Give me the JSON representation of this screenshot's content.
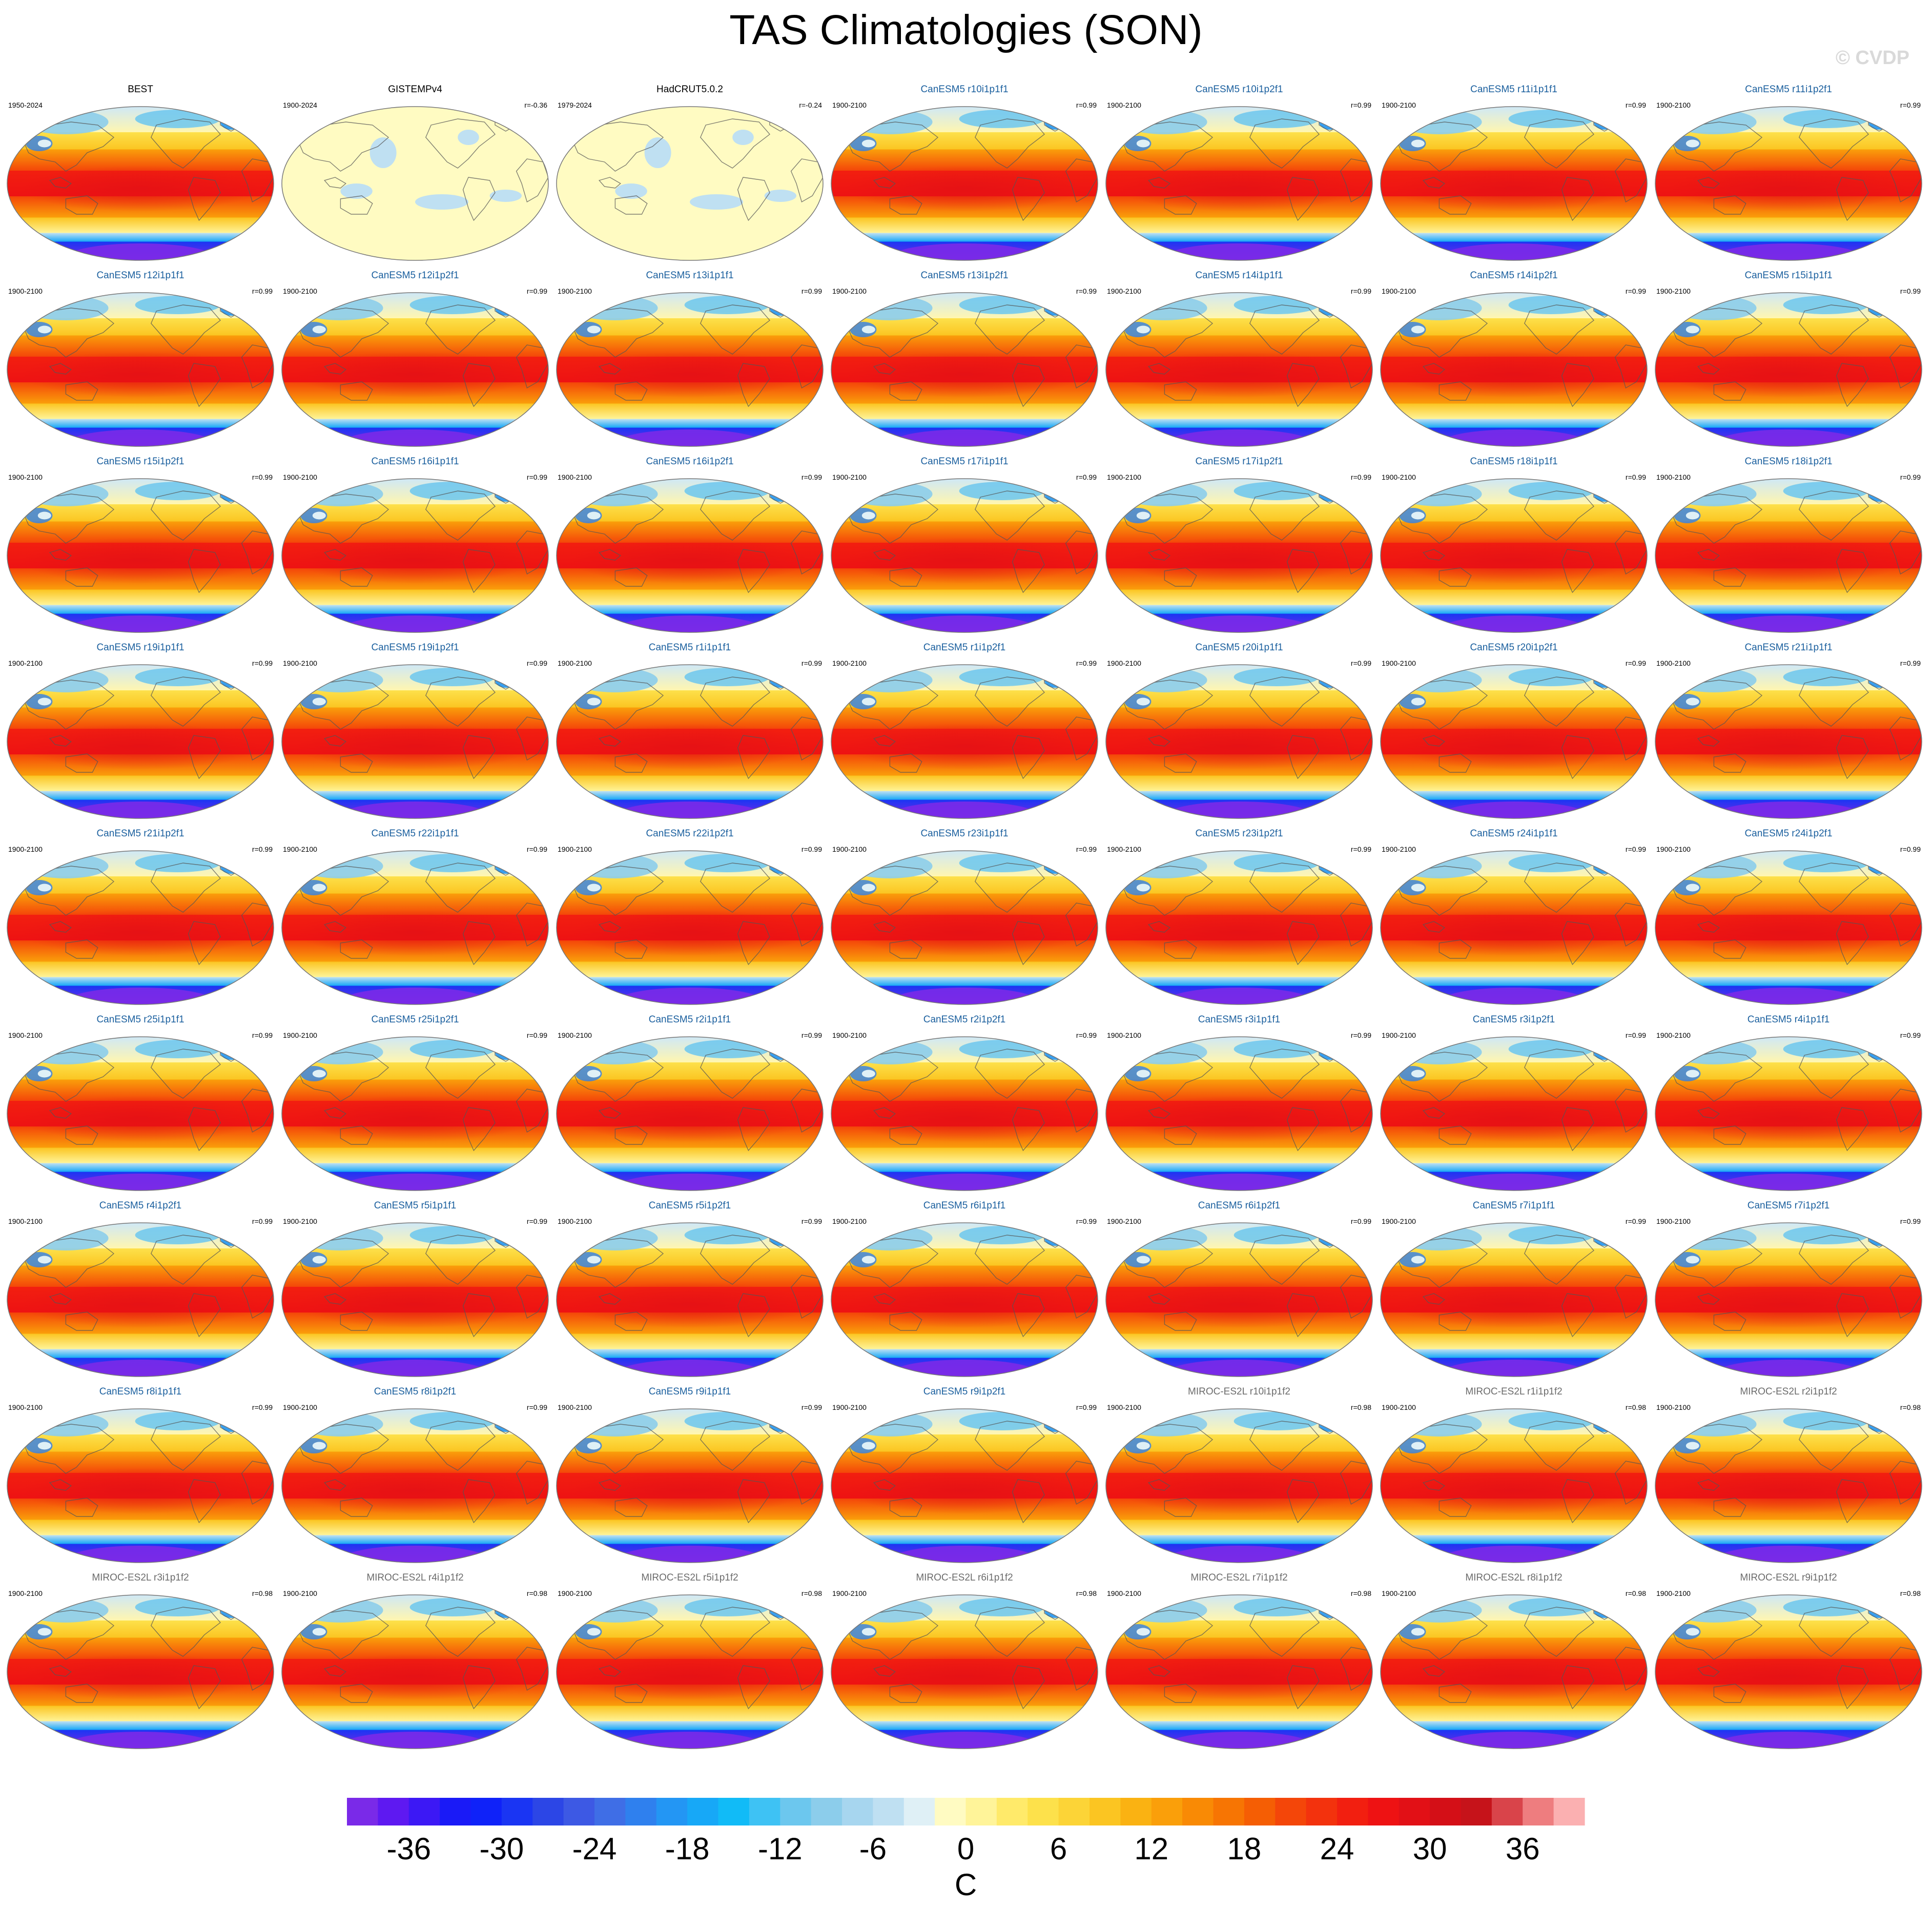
{
  "title": "TAS Climatologies (SON)",
  "watermark": "© CVDP",
  "chart_data": {
    "type": "heatmap",
    "title": "TAS Climatologies (SON)",
    "projection": "Robinson (Pacific-centered)",
    "colorbar": {
      "unit": "C",
      "tick_labels": [
        "-36",
        "-30",
        "-24",
        "-18",
        "-12",
        "-6",
        "0",
        "6",
        "12",
        "18",
        "24",
        "30",
        "36"
      ],
      "range": [
        -40,
        40
      ],
      "interval": 2,
      "colors": [
        "#7a2ae8",
        "#5e19f1",
        "#3c18f5",
        "#1a1af7",
        "#0f22f9",
        "#1a35f3",
        "#2c46e6",
        "#3d59e4",
        "#3f6ee6",
        "#2f80ee",
        "#2396f4",
        "#17a8f7",
        "#11bbf7",
        "#3ec2f4",
        "#6cc7ee",
        "#8ccdeb",
        "#a7d6ef",
        "#bfe0f2",
        "#dff0f6",
        "#fffbc2",
        "#fff499",
        "#ffea6a",
        "#fde14b",
        "#fcd437",
        "#fbc522",
        "#fab212",
        "#fa9f0a",
        "#f98a05",
        "#f77503",
        "#f55e04",
        "#f44609",
        "#f3320d",
        "#f21f10",
        "#ee1213",
        "#e21016",
        "#d40f17",
        "#c6131a",
        "#d9444a",
        "#ee7d7f",
        "#fbb0b1"
      ]
    },
    "panels": [
      {
        "title": "BEST",
        "period": "1950-2024",
        "r": "",
        "kind": "obs"
      },
      {
        "title": "GISTEMPv4",
        "period": "1900-2024",
        "r": "r=-0.36",
        "kind": "sparse"
      },
      {
        "title": "HadCRUT5.0.2",
        "period": "1979-2024",
        "r": "r=-0.24",
        "kind": "sparse"
      },
      {
        "title": "CanESM5 r10i1p1f1",
        "period": "1900-2100",
        "r": "r=0.99",
        "kind": "model"
      },
      {
        "title": "CanESM5 r10i1p2f1",
        "period": "1900-2100",
        "r": "r=0.99",
        "kind": "model"
      },
      {
        "title": "CanESM5 r11i1p1f1",
        "period": "1900-2100",
        "r": "r=0.99",
        "kind": "model"
      },
      {
        "title": "CanESM5 r11i1p2f1",
        "period": "1900-2100",
        "r": "r=0.99",
        "kind": "model"
      },
      {
        "title": "CanESM5 r12i1p1f1",
        "period": "1900-2100",
        "r": "r=0.99",
        "kind": "model"
      },
      {
        "title": "CanESM5 r12i1p2f1",
        "period": "1900-2100",
        "r": "r=0.99",
        "kind": "model"
      },
      {
        "title": "CanESM5 r13i1p1f1",
        "period": "1900-2100",
        "r": "r=0.99",
        "kind": "model"
      },
      {
        "title": "CanESM5 r13i1p2f1",
        "period": "1900-2100",
        "r": "r=0.99",
        "kind": "model"
      },
      {
        "title": "CanESM5 r14i1p1f1",
        "period": "1900-2100",
        "r": "r=0.99",
        "kind": "model"
      },
      {
        "title": "CanESM5 r14i1p2f1",
        "period": "1900-2100",
        "r": "r=0.99",
        "kind": "model"
      },
      {
        "title": "CanESM5 r15i1p1f1",
        "period": "1900-2100",
        "r": "r=0.99",
        "kind": "model"
      },
      {
        "title": "CanESM5 r15i1p2f1",
        "period": "1900-2100",
        "r": "r=0.99",
        "kind": "model"
      },
      {
        "title": "CanESM5 r16i1p1f1",
        "period": "1900-2100",
        "r": "r=0.99",
        "kind": "model"
      },
      {
        "title": "CanESM5 r16i1p2f1",
        "period": "1900-2100",
        "r": "r=0.99",
        "kind": "model"
      },
      {
        "title": "CanESM5 r17i1p1f1",
        "period": "1900-2100",
        "r": "r=0.99",
        "kind": "model"
      },
      {
        "title": "CanESM5 r17i1p2f1",
        "period": "1900-2100",
        "r": "r=0.99",
        "kind": "model"
      },
      {
        "title": "CanESM5 r18i1p1f1",
        "period": "1900-2100",
        "r": "r=0.99",
        "kind": "model"
      },
      {
        "title": "CanESM5 r18i1p2f1",
        "period": "1900-2100",
        "r": "r=0.99",
        "kind": "model"
      },
      {
        "title": "CanESM5 r19i1p1f1",
        "period": "1900-2100",
        "r": "r=0.99",
        "kind": "model"
      },
      {
        "title": "CanESM5 r19i1p2f1",
        "period": "1900-2100",
        "r": "r=0.99",
        "kind": "model"
      },
      {
        "title": "CanESM5 r1i1p1f1",
        "period": "1900-2100",
        "r": "r=0.99",
        "kind": "model"
      },
      {
        "title": "CanESM5 r1i1p2f1",
        "period": "1900-2100",
        "r": "r=0.99",
        "kind": "model"
      },
      {
        "title": "CanESM5 r20i1p1f1",
        "period": "1900-2100",
        "r": "r=0.99",
        "kind": "model"
      },
      {
        "title": "CanESM5 r20i1p2f1",
        "period": "1900-2100",
        "r": "r=0.99",
        "kind": "model"
      },
      {
        "title": "CanESM5 r21i1p1f1",
        "period": "1900-2100",
        "r": "r=0.99",
        "kind": "model"
      },
      {
        "title": "CanESM5 r21i1p2f1",
        "period": "1900-2100",
        "r": "r=0.99",
        "kind": "model"
      },
      {
        "title": "CanESM5 r22i1p1f1",
        "period": "1900-2100",
        "r": "r=0.99",
        "kind": "model"
      },
      {
        "title": "CanESM5 r22i1p2f1",
        "period": "1900-2100",
        "r": "r=0.99",
        "kind": "model"
      },
      {
        "title": "CanESM5 r23i1p1f1",
        "period": "1900-2100",
        "r": "r=0.99",
        "kind": "model"
      },
      {
        "title": "CanESM5 r23i1p2f1",
        "period": "1900-2100",
        "r": "r=0.99",
        "kind": "model"
      },
      {
        "title": "CanESM5 r24i1p1f1",
        "period": "1900-2100",
        "r": "r=0.99",
        "kind": "model"
      },
      {
        "title": "CanESM5 r24i1p2f1",
        "period": "1900-2100",
        "r": "r=0.99",
        "kind": "model"
      },
      {
        "title": "CanESM5 r25i1p1f1",
        "period": "1900-2100",
        "r": "r=0.99",
        "kind": "model"
      },
      {
        "title": "CanESM5 r25i1p2f1",
        "period": "1900-2100",
        "r": "r=0.99",
        "kind": "model"
      },
      {
        "title": "CanESM5 r2i1p1f1",
        "period": "1900-2100",
        "r": "r=0.99",
        "kind": "model"
      },
      {
        "title": "CanESM5 r2i1p2f1",
        "period": "1900-2100",
        "r": "r=0.99",
        "kind": "model"
      },
      {
        "title": "CanESM5 r3i1p1f1",
        "period": "1900-2100",
        "r": "r=0.99",
        "kind": "model"
      },
      {
        "title": "CanESM5 r3i1p2f1",
        "period": "1900-2100",
        "r": "r=0.99",
        "kind": "model"
      },
      {
        "title": "CanESM5 r4i1p1f1",
        "period": "1900-2100",
        "r": "r=0.99",
        "kind": "model"
      },
      {
        "title": "CanESM5 r4i1p2f1",
        "period": "1900-2100",
        "r": "r=0.99",
        "kind": "model"
      },
      {
        "title": "CanESM5 r5i1p1f1",
        "period": "1900-2100",
        "r": "r=0.99",
        "kind": "model"
      },
      {
        "title": "CanESM5 r5i1p2f1",
        "period": "1900-2100",
        "r": "r=0.99",
        "kind": "model"
      },
      {
        "title": "CanESM5 r6i1p1f1",
        "period": "1900-2100",
        "r": "r=0.99",
        "kind": "model"
      },
      {
        "title": "CanESM5 r6i1p2f1",
        "period": "1900-2100",
        "r": "r=0.99",
        "kind": "model"
      },
      {
        "title": "CanESM5 r7i1p1f1",
        "period": "1900-2100",
        "r": "r=0.99",
        "kind": "model"
      },
      {
        "title": "CanESM5 r7i1p2f1",
        "period": "1900-2100",
        "r": "r=0.99",
        "kind": "model"
      },
      {
        "title": "CanESM5 r8i1p1f1",
        "period": "1900-2100",
        "r": "r=0.99",
        "kind": "model"
      },
      {
        "title": "CanESM5 r8i1p2f1",
        "period": "1900-2100",
        "r": "r=0.99",
        "kind": "model"
      },
      {
        "title": "CanESM5 r9i1p1f1",
        "period": "1900-2100",
        "r": "r=0.99",
        "kind": "model"
      },
      {
        "title": "CanESM5 r9i1p2f1",
        "period": "1900-2100",
        "r": "r=0.99",
        "kind": "model"
      },
      {
        "title": "MIROC-ES2L r10i1p1f2",
        "period": "1900-2100",
        "r": "r=0.98",
        "kind": "model2"
      },
      {
        "title": "MIROC-ES2L r1i1p1f2",
        "period": "1900-2100",
        "r": "r=0.98",
        "kind": "model2"
      },
      {
        "title": "MIROC-ES2L r2i1p1f2",
        "period": "1900-2100",
        "r": "r=0.98",
        "kind": "model2"
      },
      {
        "title": "MIROC-ES2L r3i1p1f2",
        "period": "1900-2100",
        "r": "r=0.98",
        "kind": "model2"
      },
      {
        "title": "MIROC-ES2L r4i1p1f2",
        "period": "1900-2100",
        "r": "r=0.98",
        "kind": "model2"
      },
      {
        "title": "MIROC-ES2L r5i1p1f2",
        "period": "1900-2100",
        "r": "r=0.98",
        "kind": "model2"
      },
      {
        "title": "MIROC-ES2L r6i1p1f2",
        "period": "1900-2100",
        "r": "r=0.98",
        "kind": "model2"
      },
      {
        "title": "MIROC-ES2L r7i1p1f2",
        "period": "1900-2100",
        "r": "r=0.98",
        "kind": "model2"
      },
      {
        "title": "MIROC-ES2L r8i1p1f2",
        "period": "1900-2100",
        "r": "r=0.98",
        "kind": "model2"
      },
      {
        "title": "MIROC-ES2L r9i1p1f2",
        "period": "1900-2100",
        "r": "r=0.98",
        "kind": "model2"
      }
    ],
    "title_colors": {
      "obs": "#000000",
      "sparse": "#000000",
      "model": "#1a5f9e",
      "model2": "#6b6b6b"
    },
    "field_bands": [
      {
        "lat_from": 90,
        "lat_to": 60,
        "colors": [
          "#cfe8f6",
          "#fff6b0"
        ]
      },
      {
        "lat_from": 60,
        "lat_to": 40,
        "colors": [
          "#fde14b",
          "#fbc522"
        ]
      },
      {
        "lat_from": 40,
        "lat_to": 15,
        "colors": [
          "#fa9f0a",
          "#f44609"
        ]
      },
      {
        "lat_from": 15,
        "lat_to": -15,
        "colors": [
          "#f21f10",
          "#ee1213"
        ]
      },
      {
        "lat_from": -15,
        "lat_to": -40,
        "colors": [
          "#f44609",
          "#fa9f0a"
        ]
      },
      {
        "lat_from": -40,
        "lat_to": -58,
        "colors": [
          "#fbc522",
          "#fff499"
        ]
      },
      {
        "lat_from": -58,
        "lat_to": -68,
        "colors": [
          "#bfe0f2",
          "#17a8f7"
        ]
      },
      {
        "lat_from": -68,
        "lat_to": -90,
        "colors": [
          "#1a35f3",
          "#7a2ae8"
        ]
      }
    ]
  }
}
